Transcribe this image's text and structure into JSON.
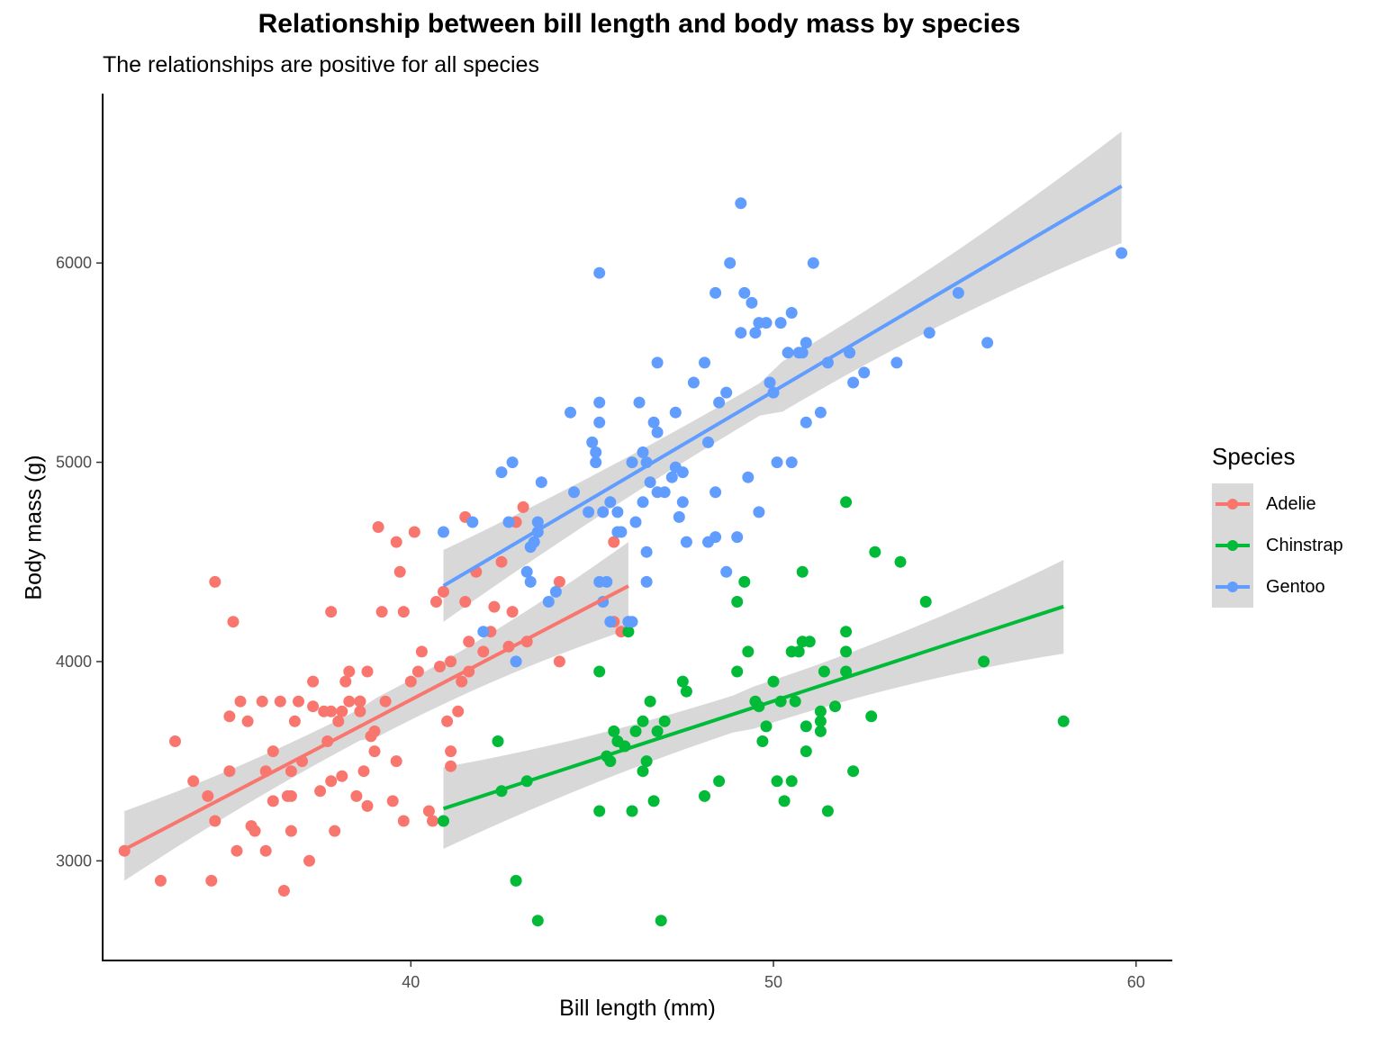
{
  "chart_data": {
    "type": "scatter",
    "title": "Relationship between bill length and body mass by species",
    "subtitle": "The relationships are positive for all species",
    "xlabel": "Bill length (mm)",
    "ylabel": "Body mass (g)",
    "xlim": [
      31.5,
      61
    ],
    "ylim": [
      2500,
      6850
    ],
    "x_ticks": [
      "40",
      "50",
      "60"
    ],
    "y_ticks": [
      "3000",
      "4000",
      "5000",
      "6000"
    ],
    "legend": {
      "title": "Species",
      "position": "right"
    },
    "grid": false,
    "series": [
      {
        "name": "Adelie",
        "color": "#F8766D",
        "trend": {
          "x": [
            32.1,
            46.0
          ],
          "y": [
            3057,
            4379
          ],
          "ci_low": [
            2900,
            4160
          ],
          "ci_high": [
            3250,
            4600
          ]
        },
        "points": [
          [
            32.1,
            3050
          ],
          [
            33.1,
            2900
          ],
          [
            33.5,
            3600
          ],
          [
            34.0,
            3400
          ],
          [
            34.4,
            3325
          ],
          [
            34.5,
            2900
          ],
          [
            34.6,
            4400
          ],
          [
            34.6,
            3200
          ],
          [
            35.0,
            3450
          ],
          [
            35.1,
            4200
          ],
          [
            35.2,
            3050
          ],
          [
            35.0,
            3725
          ],
          [
            35.3,
            3800
          ],
          [
            35.5,
            3700
          ],
          [
            35.6,
            3175
          ],
          [
            35.7,
            3150
          ],
          [
            35.9,
            3800
          ],
          [
            36.0,
            3450
          ],
          [
            36.0,
            3050
          ],
          [
            36.2,
            3300
          ],
          [
            36.2,
            3550
          ],
          [
            36.4,
            3800
          ],
          [
            36.5,
            2850
          ],
          [
            36.6,
            3325
          ],
          [
            36.7,
            3450
          ],
          [
            36.7,
            3150
          ],
          [
            36.8,
            3700
          ],
          [
            36.9,
            3800
          ],
          [
            37.0,
            3500
          ],
          [
            37.2,
            3000
          ],
          [
            37.3,
            3900
          ],
          [
            37.3,
            3775
          ],
          [
            37.5,
            3350
          ],
          [
            37.7,
            3600
          ],
          [
            37.6,
            3750
          ],
          [
            37.8,
            3400
          ],
          [
            37.8,
            4250
          ],
          [
            38.0,
            3700
          ],
          [
            38.1,
            3425
          ],
          [
            38.1,
            3750
          ],
          [
            38.2,
            3900
          ],
          [
            38.3,
            3950
          ],
          [
            38.5,
            3325
          ],
          [
            38.6,
            3750
          ],
          [
            38.6,
            3800
          ],
          [
            38.7,
            3450
          ],
          [
            38.8,
            3950
          ],
          [
            38.9,
            3625
          ],
          [
            39.0,
            3550
          ],
          [
            39.0,
            3650
          ],
          [
            39.1,
            4675
          ],
          [
            39.2,
            4250
          ],
          [
            39.3,
            3800
          ],
          [
            39.5,
            3300
          ],
          [
            39.6,
            3500
          ],
          [
            39.6,
            4600
          ],
          [
            39.7,
            4450
          ],
          [
            39.8,
            3200
          ],
          [
            39.8,
            4250
          ],
          [
            40.0,
            3900
          ],
          [
            40.1,
            4650
          ],
          [
            40.2,
            3950
          ],
          [
            40.3,
            4050
          ],
          [
            40.5,
            3250
          ],
          [
            40.6,
            3200
          ],
          [
            40.7,
            4300
          ],
          [
            40.8,
            3975
          ],
          [
            40.9,
            4350
          ],
          [
            41.0,
            3700
          ],
          [
            41.1,
            4000
          ],
          [
            41.1,
            3475
          ],
          [
            41.1,
            3550
          ],
          [
            41.3,
            3750
          ],
          [
            41.4,
            3900
          ],
          [
            41.5,
            4300
          ],
          [
            41.6,
            3950
          ],
          [
            41.8,
            4450
          ],
          [
            42.0,
            4050
          ],
          [
            42.2,
            4150
          ],
          [
            42.3,
            4275
          ],
          [
            42.5,
            4500
          ],
          [
            42.7,
            4075
          ],
          [
            42.8,
            4250
          ],
          [
            42.9,
            4700
          ],
          [
            43.1,
            4775
          ],
          [
            43.2,
            4100
          ],
          [
            44.1,
            4400
          ],
          [
            44.1,
            4000
          ],
          [
            45.6,
            4200
          ],
          [
            45.8,
            4150
          ],
          [
            46.0,
            4200
          ],
          [
            45.6,
            4600
          ],
          [
            41.5,
            4725
          ],
          [
            41.6,
            4100
          ],
          [
            36.7,
            3325
          ],
          [
            38.6,
            3800
          ],
          [
            38.3,
            3800
          ],
          [
            37.9,
            3150
          ],
          [
            37.8,
            3750
          ],
          [
            38.8,
            3275
          ]
        ]
      },
      {
        "name": "Chinstrap",
        "color": "#00BA38",
        "trend": {
          "x": [
            40.9,
            58.0
          ],
          "y": [
            3262,
            4276
          ],
          "ci_low": [
            3060,
            4040
          ],
          "ci_high": [
            3470,
            4510
          ]
        },
        "points": [
          [
            40.9,
            3200
          ],
          [
            42.4,
            3600
          ],
          [
            42.5,
            3350
          ],
          [
            42.9,
            2900
          ],
          [
            43.2,
            3400
          ],
          [
            43.5,
            2700
          ],
          [
            45.2,
            3250
          ],
          [
            45.2,
            3950
          ],
          [
            45.4,
            3525
          ],
          [
            45.5,
            3500
          ],
          [
            45.6,
            3650
          ],
          [
            45.7,
            3600
          ],
          [
            45.9,
            3575
          ],
          [
            46.0,
            4150
          ],
          [
            46.1,
            3250
          ],
          [
            46.2,
            3650
          ],
          [
            46.4,
            3700
          ],
          [
            46.4,
            3450
          ],
          [
            46.5,
            3500
          ],
          [
            46.6,
            3800
          ],
          [
            46.7,
            3300
          ],
          [
            46.8,
            3650
          ],
          [
            46.9,
            2700
          ],
          [
            47.0,
            3700
          ],
          [
            47.5,
            3900
          ],
          [
            47.6,
            3850
          ],
          [
            48.1,
            3325
          ],
          [
            48.5,
            3400
          ],
          [
            49.0,
            3950
          ],
          [
            49.0,
            4300
          ],
          [
            49.2,
            4400
          ],
          [
            49.3,
            4050
          ],
          [
            49.5,
            3800
          ],
          [
            49.6,
            3775
          ],
          [
            49.7,
            3600
          ],
          [
            49.8,
            3675
          ],
          [
            50.0,
            3900
          ],
          [
            50.1,
            3400
          ],
          [
            50.2,
            3800
          ],
          [
            50.3,
            3300
          ],
          [
            50.5,
            4050
          ],
          [
            50.5,
            3400
          ],
          [
            50.6,
            3800
          ],
          [
            50.7,
            4050
          ],
          [
            50.8,
            4450
          ],
          [
            50.8,
            4100
          ],
          [
            50.9,
            3675
          ],
          [
            50.9,
            3550
          ],
          [
            51.0,
            4100
          ],
          [
            51.3,
            3750
          ],
          [
            51.3,
            3700
          ],
          [
            51.3,
            3650
          ],
          [
            51.4,
            3950
          ],
          [
            51.5,
            3250
          ],
          [
            51.7,
            3775
          ],
          [
            52.0,
            3950
          ],
          [
            52.0,
            4800
          ],
          [
            52.0,
            4050
          ],
          [
            52.0,
            4150
          ],
          [
            52.2,
            3450
          ],
          [
            52.7,
            3725
          ],
          [
            52.8,
            4550
          ],
          [
            53.5,
            4500
          ],
          [
            54.2,
            4300
          ],
          [
            55.8,
            4000
          ],
          [
            58.0,
            3700
          ]
        ]
      },
      {
        "name": "Gentoo",
        "color": "#619CFF",
        "trend": {
          "x": [
            40.9,
            59.6
          ],
          "y": [
            4380,
            6386
          ],
          "ci_low": [
            4200,
            6100
          ],
          "ci_high": [
            4560,
            6660
          ]
        },
        "points": [
          [
            40.9,
            4650
          ],
          [
            41.7,
            4700
          ],
          [
            42.0,
            4150
          ],
          [
            42.5,
            4950
          ],
          [
            42.7,
            4700
          ],
          [
            42.8,
            5000
          ],
          [
            42.9,
            4000
          ],
          [
            43.2,
            4450
          ],
          [
            43.3,
            4400
          ],
          [
            43.3,
            4575
          ],
          [
            43.4,
            4600
          ],
          [
            43.5,
            4650
          ],
          [
            43.5,
            4700
          ],
          [
            43.6,
            4900
          ],
          [
            43.8,
            4300
          ],
          [
            44.0,
            4350
          ],
          [
            44.4,
            5250
          ],
          [
            44.5,
            4850
          ],
          [
            44.9,
            4750
          ],
          [
            45.0,
            5100
          ],
          [
            45.1,
            5000
          ],
          [
            45.1,
            5050
          ],
          [
            45.2,
            5950
          ],
          [
            45.2,
            5300
          ],
          [
            45.2,
            5200
          ],
          [
            45.3,
            4300
          ],
          [
            45.4,
            4400
          ],
          [
            45.5,
            4200
          ],
          [
            45.7,
            4750
          ],
          [
            45.8,
            4650
          ],
          [
            46.1,
            5000
          ],
          [
            46.2,
            4700
          ],
          [
            46.3,
            5300
          ],
          [
            46.4,
            5050
          ],
          [
            46.5,
            4400
          ],
          [
            46.5,
            5000
          ],
          [
            46.6,
            4900
          ],
          [
            46.7,
            5200
          ],
          [
            46.8,
            5500
          ],
          [
            46.8,
            5150
          ],
          [
            47.0,
            4850
          ],
          [
            47.2,
            4925
          ],
          [
            47.3,
            4975
          ],
          [
            47.4,
            4725
          ],
          [
            47.5,
            4950
          ],
          [
            47.6,
            4600
          ],
          [
            47.8,
            5400
          ],
          [
            48.1,
            5500
          ],
          [
            48.2,
            5100
          ],
          [
            48.4,
            5850
          ],
          [
            48.4,
            4850
          ],
          [
            48.5,
            5300
          ],
          [
            48.7,
            5350
          ],
          [
            48.8,
            6000
          ],
          [
            49.1,
            5650
          ],
          [
            49.1,
            6300
          ],
          [
            49.2,
            5850
          ],
          [
            49.3,
            4925
          ],
          [
            49.4,
            5800
          ],
          [
            49.5,
            5650
          ],
          [
            49.6,
            5700
          ],
          [
            49.8,
            5700
          ],
          [
            49.9,
            5400
          ],
          [
            50.0,
            5350
          ],
          [
            50.1,
            5000
          ],
          [
            50.2,
            5700
          ],
          [
            50.4,
            5550
          ],
          [
            50.5,
            5750
          ],
          [
            50.7,
            5550
          ],
          [
            50.8,
            5550
          ],
          [
            50.9,
            5600
          ],
          [
            51.1,
            6000
          ],
          [
            51.3,
            5250
          ],
          [
            51.5,
            5500
          ],
          [
            52.1,
            5550
          ],
          [
            52.2,
            5400
          ],
          [
            52.5,
            5450
          ],
          [
            53.4,
            5500
          ],
          [
            54.3,
            5650
          ],
          [
            55.1,
            5850
          ],
          [
            55.9,
            5600
          ],
          [
            59.6,
            6050
          ],
          [
            45.3,
            4750
          ],
          [
            45.5,
            4800
          ],
          [
            45.7,
            4650
          ],
          [
            46.0,
            4200
          ],
          [
            46.1,
            4200
          ],
          [
            46.4,
            4800
          ],
          [
            46.5,
            4550
          ],
          [
            46.8,
            4850
          ],
          [
            47.5,
            4800
          ],
          [
            48.2,
            4600
          ],
          [
            48.4,
            4625
          ],
          [
            49.0,
            4625
          ],
          [
            49.6,
            4750
          ],
          [
            50.5,
            5000
          ],
          [
            50.9,
            5200
          ],
          [
            48.7,
            4450
          ],
          [
            45.2,
            4400
          ],
          [
            47.3,
            5250
          ]
        ]
      }
    ]
  }
}
